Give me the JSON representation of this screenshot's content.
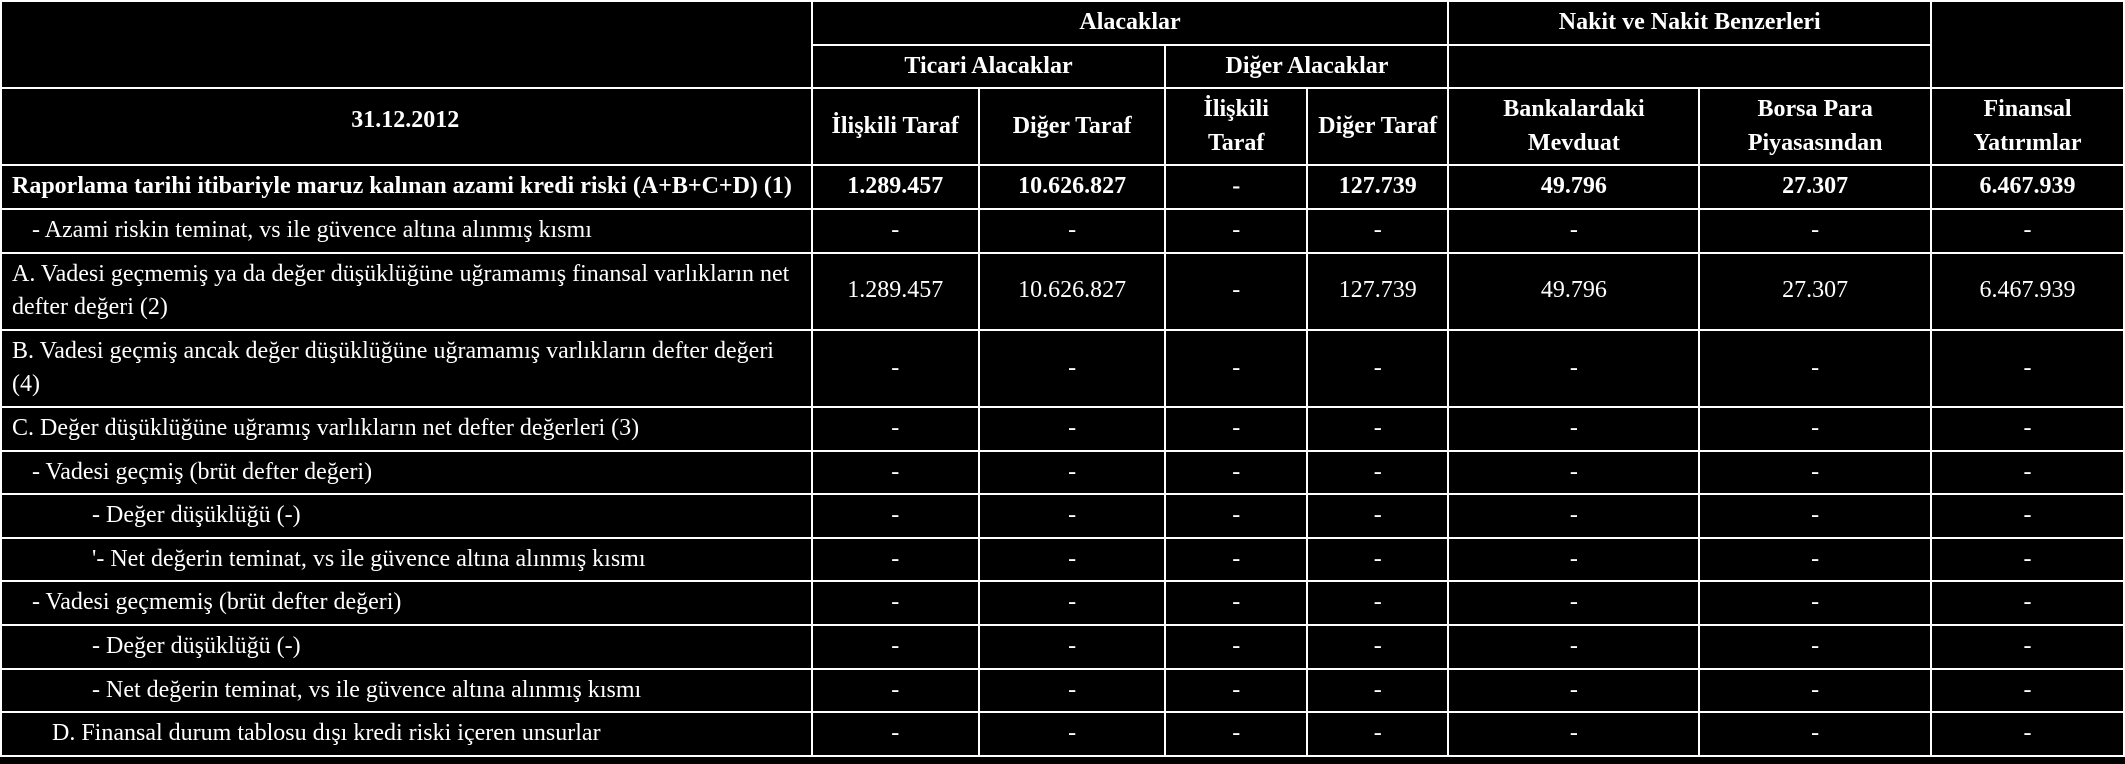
{
  "header_group_alacaklar": "Alacaklar",
  "header_group_nakit": "Nakit ve Nakit Benzerleri",
  "header_sub_ticari": "Ticari Alacaklar",
  "header_sub_diger": "Diğer Alacaklar",
  "header_date": "31.12.2012",
  "col_headers": {
    "iliskili_taraf_1": "İlişkili Taraf",
    "diger_taraf_1": "Diğer Taraf",
    "iliskili_taraf_2": "İlişkili Taraf",
    "diger_taraf_2": "Diğer Taraf",
    "bankalardaki_mevduat": "Bankalardaki Mevduat",
    "borsa_para": "Borsa Para Piyasasından",
    "finansal_yatirimlar": "Finansal Yatırımlar"
  },
  "rows": [
    {
      "label": "Raporlama tarihi itibariyle maruz kalınan azami kredi riski (A+B+C+D) (1)",
      "bold": true,
      "indent": 0,
      "values": [
        "1.289.457",
        "10.626.827",
        "-",
        "127.739",
        "49.796",
        "27.307",
        "6.467.939"
      ],
      "values_bold": true
    },
    {
      "label": "- Azami riskin teminat, vs ile güvence altına alınmış kısmı",
      "bold": false,
      "indent": 1,
      "values": [
        "-",
        "-",
        "-",
        "-",
        "-",
        "-",
        "-"
      ],
      "values_bold": false
    },
    {
      "label": "A. Vadesi geçmemiş ya da değer düşüklüğüne uğramamış finansal varlıkların net defter değeri (2)",
      "bold": false,
      "indent": 0,
      "values": [
        "1.289.457",
        "10.626.827",
        "-",
        "127.739",
        "49.796",
        "27.307",
        "6.467.939"
      ],
      "values_bold": false
    },
    {
      "label": "B. Vadesi geçmiş ancak değer düşüklüğüne uğramamış varlıkların defter değeri (4)",
      "bold": false,
      "indent": 0,
      "values": [
        "-",
        "-",
        "-",
        "-",
        "-",
        "-",
        "-"
      ],
      "values_bold": false
    },
    {
      "label": "C. Değer düşüklüğüne uğramış varlıkların net defter değerleri (3)",
      "bold": false,
      "indent": 0,
      "values": [
        "-",
        "-",
        "-",
        "-",
        "-",
        "-",
        "-"
      ],
      "values_bold": false
    },
    {
      "label": "- Vadesi geçmiş (brüt defter değeri)",
      "bold": false,
      "indent": 1,
      "values": [
        "-",
        "-",
        "-",
        "-",
        "-",
        "-",
        "-"
      ],
      "values_bold": false
    },
    {
      "label": "- Değer düşüklüğü  (-)",
      "bold": false,
      "indent": 3,
      "values": [
        "-",
        "-",
        "-",
        "-",
        "-",
        "-",
        "-"
      ],
      "values_bold": false
    },
    {
      "label": "'- Net değerin teminat, vs ile güvence altına alınmış kısmı",
      "bold": false,
      "indent": 3,
      "values": [
        "-",
        "-",
        "-",
        "-",
        "-",
        "-",
        "-"
      ],
      "values_bold": false
    },
    {
      "label": "- Vadesi geçmemiş (brüt defter değeri)",
      "bold": false,
      "indent": 1,
      "values": [
        "-",
        "-",
        "-",
        "-",
        "-",
        "-",
        "-"
      ],
      "values_bold": false
    },
    {
      "label": "- Değer düşüklüğü  (-)",
      "bold": false,
      "indent": 3,
      "values": [
        "-",
        "-",
        "-",
        "-",
        "-",
        "-",
        "-"
      ],
      "values_bold": false
    },
    {
      "label": "- Net değerin teminat, vs ile güvence altına alınmış kısmı",
      "bold": false,
      "indent": 3,
      "values": [
        "-",
        "-",
        "-",
        "-",
        "-",
        "-",
        "-"
      ],
      "values_bold": false
    },
    {
      "label": "D. Finansal durum tablosu dışı kredi riski içeren unsurlar",
      "bold": false,
      "indent": 2,
      "values": [
        "-",
        "-",
        "-",
        "-",
        "-",
        "-",
        "-"
      ],
      "values_bold": false
    }
  ],
  "styling": {
    "background_color": "#000000",
    "text_color": "#ffffff",
    "border_color": "#ffffff",
    "font_family": "Times New Roman",
    "font_size": 24,
    "col_widths": {
      "label": 630,
      "iliskili_taraf_1": 130,
      "diger_taraf_1": 145,
      "iliskili_taraf_2": 110,
      "diger_taraf_2": 110,
      "bankalardaki": 195,
      "borsa": 180,
      "finansal": 150
    }
  }
}
